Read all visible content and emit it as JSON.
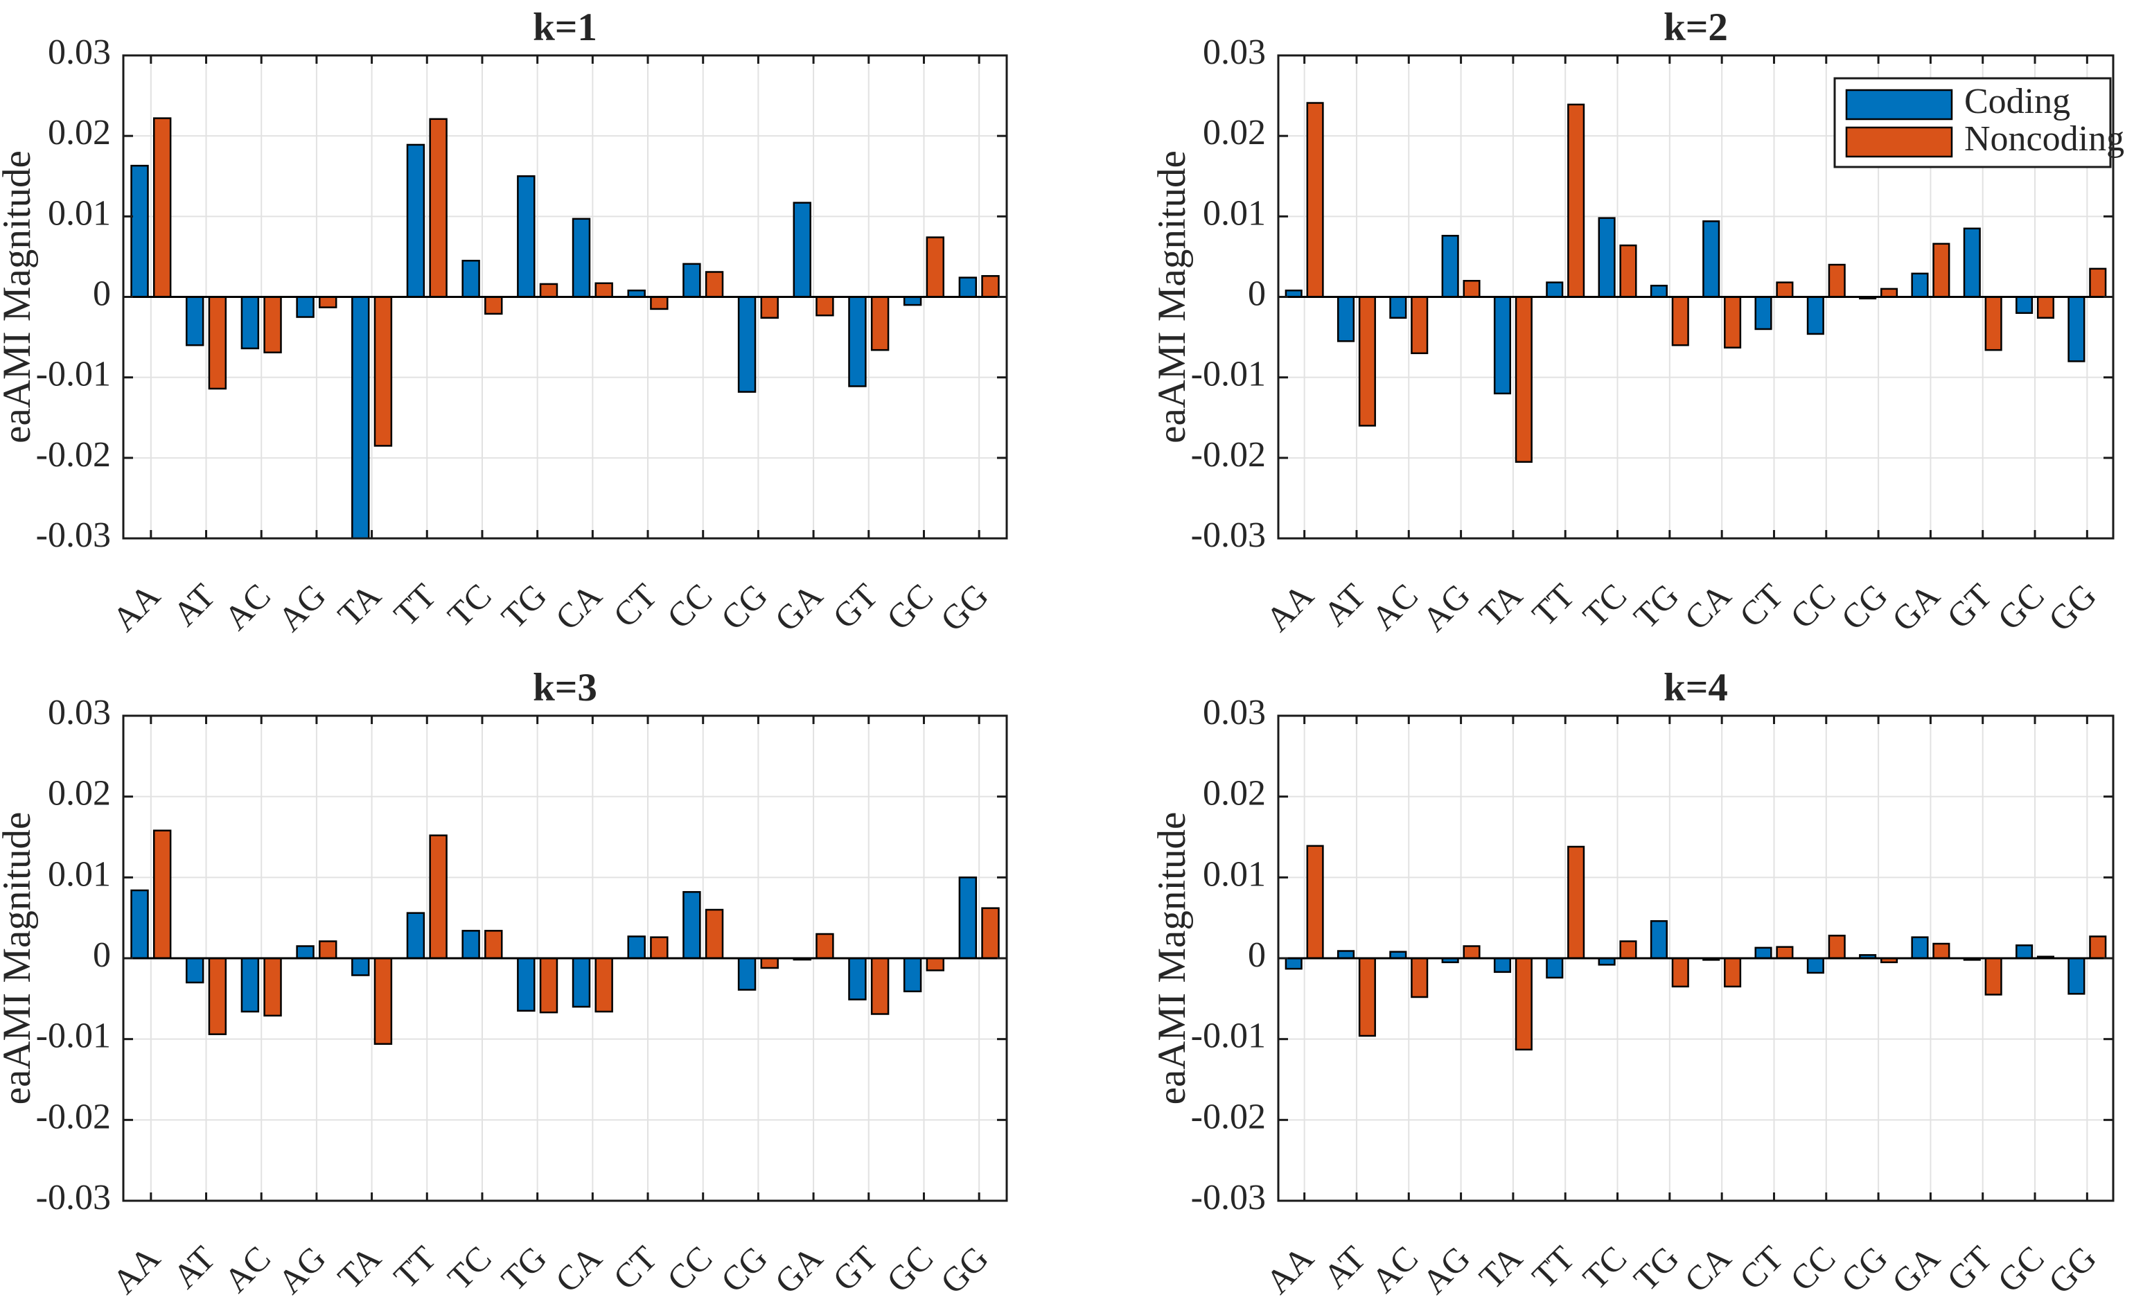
{
  "figure": {
    "background_color": "#ffffff",
    "axes_color": "#1a1a1a",
    "grid_color": "#e2e2e2",
    "text_color": "#262626",
    "ylabel": "eaAMI Magnitude",
    "y_ticks": [
      {
        "label": "0.03",
        "value": 0.03
      },
      {
        "label": "0.02",
        "value": 0.02
      },
      {
        "label": "0.01",
        "value": 0.01
      },
      {
        "label": "0",
        "value": 0
      },
      {
        "label": "-0.01",
        "value": -0.01
      },
      {
        "label": "-0.02",
        "value": -0.02
      },
      {
        "label": "-0.03",
        "value": -0.03
      }
    ],
    "legend": {
      "entries": [
        {
          "label": "Coding",
          "color": "#0072BD"
        },
        {
          "label": "Noncoding",
          "color": "#D95319"
        }
      ],
      "location": "inside-top-right-of-k2"
    },
    "series_colors": {
      "Coding": "#0072BD",
      "Noncoding": "#D95319"
    }
  },
  "chart_data": [
    {
      "type": "bar",
      "title": "k=1",
      "xlabel": "",
      "ylabel": "eaAMI Magnitude",
      "ylim": [
        -0.03,
        0.03
      ],
      "grid": true,
      "legend_position": "none",
      "categories": [
        "AA",
        "AT",
        "AC",
        "AG",
        "TA",
        "TT",
        "TC",
        "TG",
        "CA",
        "CT",
        "CC",
        "CG",
        "GA",
        "GT",
        "GC",
        "GG"
      ],
      "series": [
        {
          "name": "Coding",
          "values": [
            0.0163,
            -0.006,
            -0.0064,
            -0.0025,
            -0.03,
            0.0189,
            0.0045,
            0.015,
            0.0097,
            0.0008,
            0.0041,
            -0.0118,
            0.0117,
            -0.0111,
            -0.001,
            0.0024
          ]
        },
        {
          "name": "Noncoding",
          "values": [
            0.0222,
            -0.0114,
            -0.0069,
            -0.0013,
            -0.0185,
            0.0221,
            -0.0021,
            0.0016,
            0.0017,
            -0.0015,
            0.0031,
            -0.0026,
            -0.0023,
            -0.0066,
            0.0074,
            0.0026
          ]
        }
      ]
    },
    {
      "type": "bar",
      "title": "k=2",
      "xlabel": "",
      "ylabel": "eaAMI Magnitude",
      "ylim": [
        -0.03,
        0.03
      ],
      "grid": true,
      "legend_position": "top-right",
      "categories": [
        "AA",
        "AT",
        "AC",
        "AG",
        "TA",
        "TT",
        "TC",
        "TG",
        "CA",
        "CT",
        "CC",
        "CG",
        "GA",
        "GT",
        "GC",
        "GG"
      ],
      "series": [
        {
          "name": "Coding",
          "values": [
            0.0008,
            -0.0055,
            -0.0026,
            0.0076,
            -0.012,
            0.0018,
            0.0098,
            0.0014,
            0.0094,
            -0.004,
            -0.0046,
            -0.0002,
            0.0029,
            0.0085,
            -0.002,
            -0.008
          ]
        },
        {
          "name": "Noncoding",
          "values": [
            0.0241,
            -0.016,
            -0.007,
            0.002,
            -0.0205,
            0.0239,
            0.0064,
            -0.006,
            -0.0063,
            0.0018,
            0.004,
            0.001,
            0.0066,
            -0.0066,
            -0.0026,
            0.0035
          ]
        }
      ]
    },
    {
      "type": "bar",
      "title": "k=3",
      "xlabel": "",
      "ylabel": "eaAMI Magnitude",
      "ylim": [
        -0.03,
        0.03
      ],
      "grid": true,
      "legend_position": "none",
      "categories": [
        "AA",
        "AT",
        "AC",
        "AG",
        "TA",
        "TT",
        "TC",
        "TG",
        "CA",
        "CT",
        "CC",
        "CG",
        "GA",
        "GT",
        "GC",
        "GG"
      ],
      "series": [
        {
          "name": "Coding",
          "values": [
            0.0084,
            -0.003,
            -0.0066,
            0.0015,
            -0.0021,
            0.0056,
            0.0034,
            -0.0065,
            -0.006,
            0.0027,
            0.0082,
            -0.0039,
            -0.0001,
            -0.0051,
            -0.0041,
            0.01
          ]
        },
        {
          "name": "Noncoding",
          "values": [
            0.0158,
            -0.0094,
            -0.0071,
            0.0021,
            -0.0106,
            0.0152,
            0.0034,
            -0.0067,
            -0.0066,
            0.0026,
            0.006,
            -0.0012,
            0.003,
            -0.0069,
            -0.0015,
            0.0062
          ]
        }
      ]
    },
    {
      "type": "bar",
      "title": "k=4",
      "xlabel": "",
      "ylabel": "eaAMI Magnitude",
      "ylim": [
        -0.03,
        0.03
      ],
      "grid": true,
      "legend_position": "none",
      "categories": [
        "AA",
        "AT",
        "AC",
        "AG",
        "TA",
        "TT",
        "TC",
        "TG",
        "CA",
        "CT",
        "CC",
        "CG",
        "GA",
        "GT",
        "GC",
        "GG"
      ],
      "series": [
        {
          "name": "Coding",
          "values": [
            -0.0013,
            0.0009,
            0.0008,
            -0.0005,
            -0.0017,
            -0.0024,
            -0.0008,
            0.0046,
            -0.0002,
            0.0013,
            -0.0018,
            0.0004,
            0.0026,
            -0.0002,
            0.0016,
            -0.0044
          ]
        },
        {
          "name": "Noncoding",
          "values": [
            0.0139,
            -0.0096,
            -0.0048,
            0.0015,
            -0.0113,
            0.0138,
            0.0021,
            -0.0035,
            -0.0035,
            0.0014,
            0.0028,
            -0.0005,
            0.0018,
            -0.0045,
            0.0002,
            0.0027
          ]
        }
      ]
    }
  ]
}
